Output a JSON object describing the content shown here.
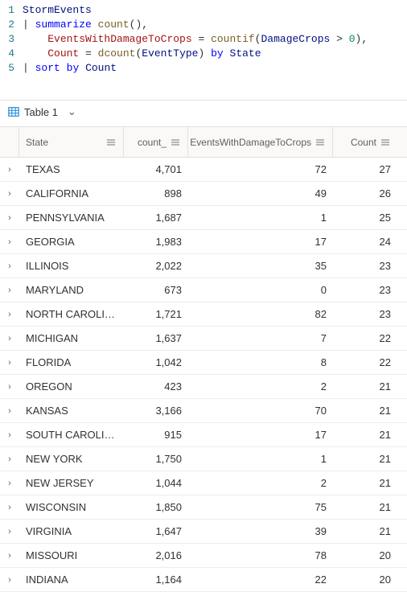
{
  "editor": {
    "lines": [
      {
        "n": "1",
        "tokens": [
          {
            "cls": "tok-ident",
            "t": "StormEvents"
          }
        ]
      },
      {
        "n": "2",
        "tokens": [
          {
            "cls": "tok-pipe",
            "t": "| "
          },
          {
            "cls": "tok-kw",
            "t": "summarize"
          },
          {
            "cls": "tok-plain",
            "t": " "
          },
          {
            "cls": "tok-func",
            "t": "count"
          },
          {
            "cls": "tok-plain",
            "t": "(),"
          }
        ]
      },
      {
        "n": "3",
        "tokens": [
          {
            "cls": "tok-plain",
            "t": "    "
          },
          {
            "cls": "tok-name",
            "t": "EventsWithDamageToCrops"
          },
          {
            "cls": "tok-plain",
            "t": " = "
          },
          {
            "cls": "tok-func",
            "t": "countif"
          },
          {
            "cls": "tok-plain",
            "t": "("
          },
          {
            "cls": "tok-field",
            "t": "DamageCrops"
          },
          {
            "cls": "tok-plain",
            "t": " > "
          },
          {
            "cls": "tok-num",
            "t": "0"
          },
          {
            "cls": "tok-plain",
            "t": "),"
          }
        ]
      },
      {
        "n": "4",
        "tokens": [
          {
            "cls": "tok-plain",
            "t": "    "
          },
          {
            "cls": "tok-name",
            "t": "Count"
          },
          {
            "cls": "tok-plain",
            "t": " = "
          },
          {
            "cls": "tok-func",
            "t": "dcount"
          },
          {
            "cls": "tok-plain",
            "t": "("
          },
          {
            "cls": "tok-field",
            "t": "EventType"
          },
          {
            "cls": "tok-plain",
            "t": ") "
          },
          {
            "cls": "tok-kw",
            "t": "by"
          },
          {
            "cls": "tok-plain",
            "t": " "
          },
          {
            "cls": "tok-field",
            "t": "State"
          }
        ]
      },
      {
        "n": "5",
        "tokens": [
          {
            "cls": "tok-pipe",
            "t": "| "
          },
          {
            "cls": "tok-kw",
            "t": "sort"
          },
          {
            "cls": "tok-plain",
            "t": " "
          },
          {
            "cls": "tok-kw",
            "t": "by"
          },
          {
            "cls": "tok-plain",
            "t": " "
          },
          {
            "cls": "tok-field",
            "t": "Count"
          }
        ]
      }
    ]
  },
  "results": {
    "tab_label": "Table 1",
    "columns": [
      "State",
      "count_",
      "EventsWithDamageToCrops",
      "Count"
    ],
    "rows": [
      {
        "state": "TEXAS",
        "count": "4,701",
        "ev": "72",
        "cnt": "27"
      },
      {
        "state": "CALIFORNIA",
        "count": "898",
        "ev": "49",
        "cnt": "26"
      },
      {
        "state": "PENNSYLVANIA",
        "count": "1,687",
        "ev": "1",
        "cnt": "25"
      },
      {
        "state": "GEORGIA",
        "count": "1,983",
        "ev": "17",
        "cnt": "24"
      },
      {
        "state": "ILLINOIS",
        "count": "2,022",
        "ev": "35",
        "cnt": "23"
      },
      {
        "state": "MARYLAND",
        "count": "673",
        "ev": "0",
        "cnt": "23"
      },
      {
        "state": "NORTH CAROLINA",
        "count": "1,721",
        "ev": "82",
        "cnt": "23"
      },
      {
        "state": "MICHIGAN",
        "count": "1,637",
        "ev": "7",
        "cnt": "22"
      },
      {
        "state": "FLORIDA",
        "count": "1,042",
        "ev": "8",
        "cnt": "22"
      },
      {
        "state": "OREGON",
        "count": "423",
        "ev": "2",
        "cnt": "21"
      },
      {
        "state": "KANSAS",
        "count": "3,166",
        "ev": "70",
        "cnt": "21"
      },
      {
        "state": "SOUTH CAROLINA",
        "count": "915",
        "ev": "17",
        "cnt": "21"
      },
      {
        "state": "NEW YORK",
        "count": "1,750",
        "ev": "1",
        "cnt": "21"
      },
      {
        "state": "NEW JERSEY",
        "count": "1,044",
        "ev": "2",
        "cnt": "21"
      },
      {
        "state": "WISCONSIN",
        "count": "1,850",
        "ev": "75",
        "cnt": "21"
      },
      {
        "state": "VIRGINIA",
        "count": "1,647",
        "ev": "39",
        "cnt": "21"
      },
      {
        "state": "MISSOURI",
        "count": "2,016",
        "ev": "78",
        "cnt": "20"
      },
      {
        "state": "INDIANA",
        "count": "1,164",
        "ev": "22",
        "cnt": "20"
      }
    ]
  },
  "colors": {
    "row_border": "#ededed"
  }
}
